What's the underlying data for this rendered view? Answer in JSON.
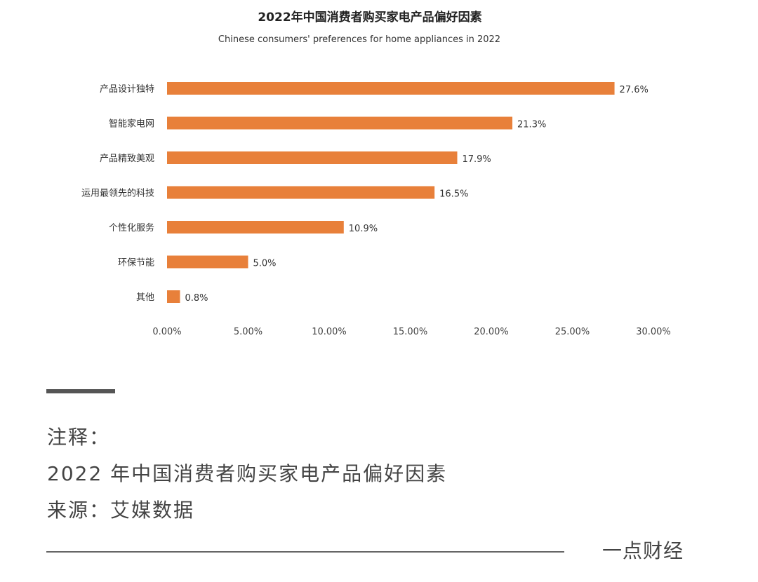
{
  "chart_data": {
    "type": "bar",
    "orientation": "horizontal",
    "title": "2022年中国消费者购买家电产品偏好因素",
    "subtitle": "Chinese consumers' preferences for home appliances in 2022",
    "categories": [
      "产品设计独特",
      "智能家电网",
      "产品精致美观",
      "运用最领先的科技",
      "个性化服务",
      "环保节能",
      "其他"
    ],
    "values": [
      27.6,
      21.3,
      17.9,
      16.5,
      10.9,
      5.0,
      0.8
    ],
    "value_labels": [
      "27.6%",
      "21.3%",
      "17.9%",
      "16.5%",
      "10.9%",
      "5.0%",
      "0.8%"
    ],
    "xticks": [
      0,
      5,
      10,
      15,
      20,
      25,
      30
    ],
    "xtick_labels": [
      "0.00%",
      "5.00%",
      "10.00%",
      "15.00%",
      "20.00%",
      "25.00%",
      "30.00%"
    ],
    "xlim": [
      0,
      30
    ],
    "xlabel": "",
    "ylabel": "",
    "grid": false,
    "bar_color": "#E8803A"
  },
  "notes": {
    "label": "注释：",
    "description": "2022 年中国消费者购买家电产品偏好因素",
    "source": "来源：艾媒数据"
  },
  "brand": "一点财经"
}
